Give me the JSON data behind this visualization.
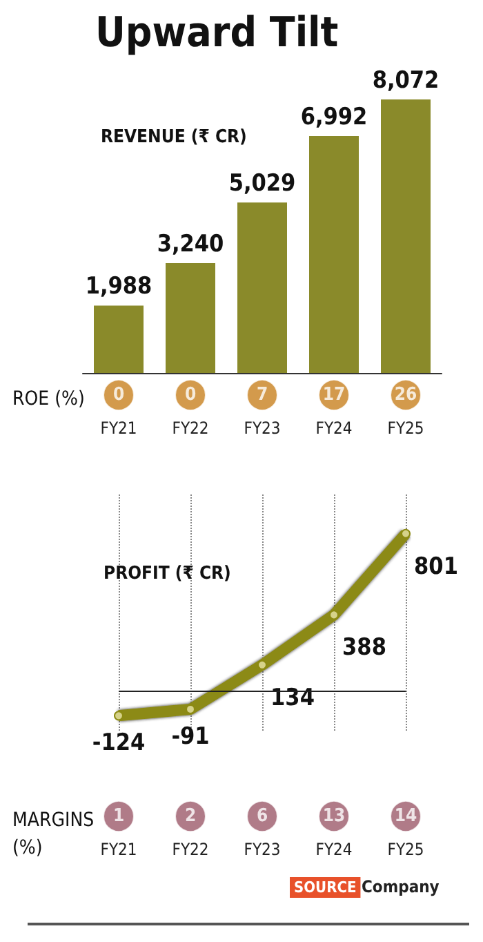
{
  "chart_data": [
    {
      "type": "bar",
      "title": "Upward Tilt",
      "subtitle": "REVENUE (₹ CR)",
      "categories": [
        "FY21",
        "FY22",
        "FY23",
        "FY24",
        "FY25"
      ],
      "values": [
        1988,
        3240,
        5029,
        6992,
        8072
      ],
      "value_labels": [
        "1,988",
        "3,240",
        "5,029",
        "6,992",
        "8,072"
      ],
      "color": "#8a8a2a",
      "tick_labels": false
    },
    {
      "type": "other",
      "title": "ROE (%)",
      "categories": [
        "FY21",
        "FY22",
        "FY23",
        "FY24",
        "FY25"
      ],
      "values": [
        0,
        0,
        7,
        17,
        26
      ],
      "color": "#c8811f",
      "data_labels": true
    },
    {
      "type": "line",
      "title": "PROFIT (₹ CR)",
      "categories": [
        "FY21",
        "FY22",
        "FY23",
        "FY24",
        "FY25"
      ],
      "values": [
        -124,
        -91,
        134,
        388,
        801
      ],
      "color": "#8c8a12",
      "data_labels": true,
      "marker": "circle",
      "grid": "x",
      "ref_lines": [
        {
          "axis": "y",
          "value": 0
        }
      ]
    },
    {
      "type": "other",
      "title": "MARGINS (%)",
      "values": [
        1,
        2,
        6,
        13,
        14
      ],
      "color": "#9c5a6a",
      "data_labels": true,
      "annotations": [
        "SOURCE",
        "Company"
      ]
    }
  ]
}
